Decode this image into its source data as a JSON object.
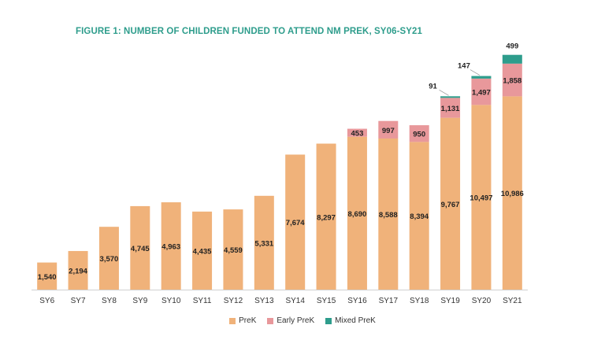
{
  "chart_data": {
    "type": "bar",
    "stacked": true,
    "title": "FIGURE 1: NUMBER OF CHILDREN FUNDED TO ATTEND NM PREK, SY06-SY21",
    "xlabel": "",
    "ylabel": "",
    "categories": [
      "SY6",
      "SY7",
      "SY8",
      "SY9",
      "SY10",
      "SY11",
      "SY12",
      "SY13",
      "SY14",
      "SY15",
      "SY16",
      "SY17",
      "SY18",
      "SY19",
      "SY20",
      "SY21"
    ],
    "series": [
      {
        "name": "PreK",
        "color": "#f0b27a",
        "values": [
          1540,
          2194,
          3570,
          4745,
          4963,
          4435,
          4559,
          5331,
          7674,
          8297,
          8690,
          8588,
          8394,
          9767,
          10497,
          10986
        ],
        "labels": [
          "1,540",
          "2,194",
          "3,570",
          "4,745",
          "4,963",
          "4,435",
          "4,559",
          "5,331",
          "7,674",
          "8,297",
          "8,690",
          "8,588",
          "8,394",
          "9,767",
          "10,497",
          "10,986"
        ]
      },
      {
        "name": "Early PreK",
        "color": "#e8989b",
        "values": [
          0,
          0,
          0,
          0,
          0,
          0,
          0,
          0,
          0,
          0,
          453,
          997,
          950,
          1131,
          1497,
          1858
        ],
        "labels": [
          "",
          "",
          "",
          "",
          "",
          "",
          "",
          "",
          "",
          "",
          "453",
          "997",
          "950",
          "1,131",
          "1,497",
          "1,858"
        ]
      },
      {
        "name": "Mixed PreK",
        "color": "#2e9d8c",
        "values": [
          0,
          0,
          0,
          0,
          0,
          0,
          0,
          0,
          0,
          0,
          0,
          0,
          0,
          91,
          147,
          499
        ],
        "labels": [
          "",
          "",
          "",
          "",
          "",
          "",
          "",
          "",
          "",
          "",
          "",
          "",
          "",
          "91",
          "147",
          "499"
        ]
      }
    ],
    "ylim": [
      0,
      14000
    ],
    "grid": false,
    "legend_position": "bottom"
  }
}
